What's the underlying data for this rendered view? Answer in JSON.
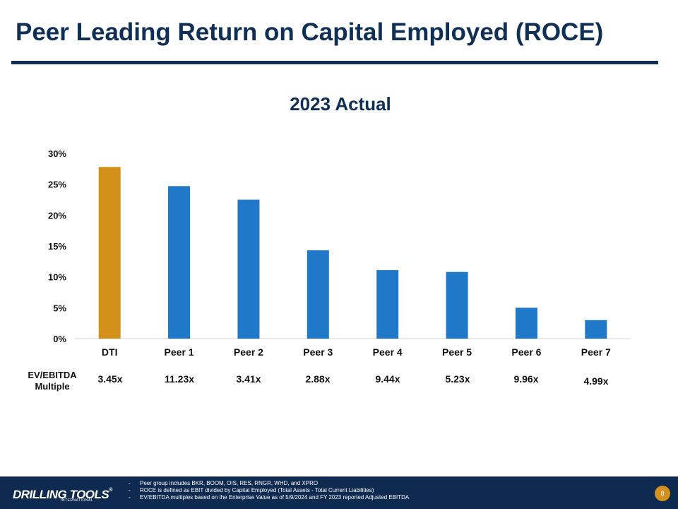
{
  "header": {
    "title": "Peer Leading Return on Capital Employed (ROCE)"
  },
  "chart_data": {
    "type": "bar",
    "title": "2023 Actual",
    "categories": [
      "DTI",
      "Peer 1",
      "Peer 2",
      "Peer 3",
      "Peer 4",
      "Peer 5",
      "Peer 6",
      "Peer 7"
    ],
    "values": [
      27.8,
      24.7,
      22.5,
      14.3,
      11.1,
      10.8,
      5.0,
      3.0
    ],
    "value_unit": "%",
    "ylim": [
      0,
      30
    ],
    "yticks": [
      "0%",
      "5%",
      "10%",
      "15%",
      "20%",
      "25%",
      "30%"
    ],
    "ytick_values": [
      0,
      5,
      10,
      15,
      20,
      25,
      30
    ],
    "xlabel": "",
    "ylabel": "",
    "grid": false,
    "colors": {
      "highlight": "#D4911A",
      "peer": "#1F78C8"
    },
    "highlight_category": "DTI"
  },
  "ev_ebitda": {
    "label": "EV/EBITDA Multiple",
    "values": [
      "3.45x",
      "11.23x",
      "3.41x",
      "2.88x",
      "9.44x",
      "5.23x",
      "9.96x",
      "4.99x"
    ]
  },
  "footer": {
    "logo": "DRILLING TOOLS",
    "logo_sub": "INTERNATIONAL",
    "notes": [
      "Peer group includes BKR, BOOM, OIS, RES, RNGR, WHD, and XPRO",
      "ROCE is defined as EBIT divided by Capital Employed (Total Assets - Total Current Liabilities)",
      "EV/EBITDA multiples based on the Enterprise Value as of 5/9/2024 and FY 2023 reported Adjusted EBITDA"
    ],
    "page_number": "8"
  }
}
